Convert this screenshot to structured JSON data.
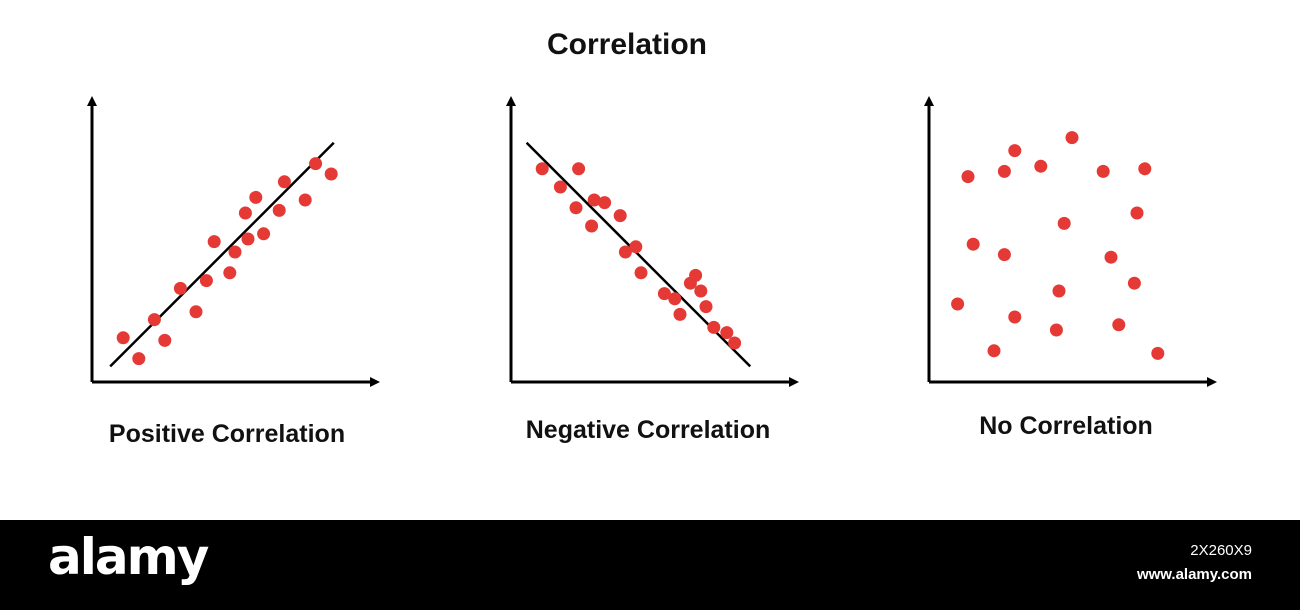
{
  "title": "Correlation",
  "colors": {
    "point": "#e53935",
    "axis": "#000000",
    "footer_bg": "#000000"
  },
  "chart_data": [
    {
      "type": "scatter",
      "title": "Positive Correlation",
      "xlabel": "",
      "ylabel": "",
      "xlim": [
        0,
        10
      ],
      "ylim": [
        0,
        10
      ],
      "grid": false,
      "trend_line": {
        "x": [
          0.7,
          9.3
        ],
        "y": [
          0.6,
          9.2
        ]
      },
      "x": [
        1.2,
        1.8,
        2.4,
        2.8,
        3.4,
        4.0,
        4.4,
        4.7,
        5.3,
        5.5,
        5.9,
        6.0,
        6.3,
        6.6,
        7.2,
        7.4,
        8.2,
        8.6,
        9.2
      ],
      "y": [
        1.7,
        0.9,
        2.4,
        1.6,
        3.6,
        2.7,
        3.9,
        5.4,
        4.2,
        5.0,
        6.5,
        5.5,
        7.1,
        5.7,
        6.6,
        7.7,
        7.0,
        8.4,
        8.0
      ]
    },
    {
      "type": "scatter",
      "title": "Negative Correlation",
      "xlabel": "",
      "ylabel": "",
      "xlim": [
        0,
        10
      ],
      "ylim": [
        0,
        10
      ],
      "grid": false,
      "trend_line": {
        "x": [
          0.6,
          9.2
        ],
        "y": [
          9.2,
          0.6
        ]
      },
      "x": [
        1.2,
        1.9,
        2.5,
        2.6,
        3.1,
        3.2,
        3.6,
        4.2,
        4.4,
        4.8,
        5.0,
        5.9,
        6.3,
        6.5,
        6.9,
        7.1,
        7.3,
        7.5,
        7.8,
        8.3,
        8.6
      ],
      "y": [
        8.2,
        7.5,
        6.7,
        8.2,
        6.0,
        7.0,
        6.9,
        6.4,
        5.0,
        5.2,
        4.2,
        3.4,
        3.2,
        2.6,
        3.8,
        4.1,
        3.5,
        2.9,
        2.1,
        1.9,
        1.5
      ]
    },
    {
      "type": "scatter",
      "title": "No Correlation",
      "xlabel": "",
      "ylabel": "",
      "xlim": [
        0,
        10
      ],
      "ylim": [
        0,
        10
      ],
      "grid": false,
      "x": [
        1.1,
        1.5,
        1.7,
        2.5,
        2.9,
        2.9,
        3.3,
        3.3,
        4.3,
        4.9,
        5.0,
        5.2,
        5.5,
        6.7,
        7.0,
        7.3,
        7.9,
        8.0,
        8.3,
        8.8
      ],
      "y": [
        3.0,
        7.9,
        5.3,
        1.2,
        4.9,
        8.1,
        8.9,
        2.5,
        8.3,
        2.0,
        3.5,
        6.1,
        9.4,
        8.1,
        4.8,
        2.2,
        3.8,
        6.5,
        8.2,
        1.1
      ]
    }
  ],
  "footer": {
    "brand": "alamy",
    "image_id": "2X260X9",
    "site_url": "www.alamy.com"
  }
}
